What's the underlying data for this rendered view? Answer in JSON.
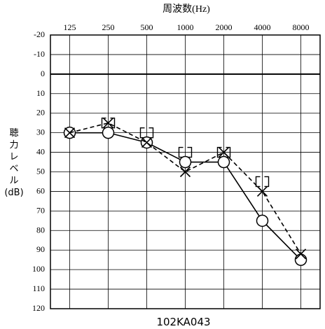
{
  "chart_data": {
    "type": "line",
    "title": "周波数(Hz)",
    "ylabel_lines": [
      "聴",
      "力",
      "レ",
      "ベ",
      "ル",
      "(dB)"
    ],
    "caption": "102KA043",
    "x": [
      125,
      250,
      500,
      1000,
      2000,
      4000,
      8000
    ],
    "x_tick_labels": [
      "125",
      "250",
      "500",
      "1000",
      "2000",
      "4000",
      "8000"
    ],
    "y_ticks": [
      -20,
      -10,
      0,
      10,
      20,
      30,
      40,
      50,
      60,
      70,
      80,
      90,
      100,
      110,
      120
    ],
    "y_tick_labels": [
      "-20",
      "-10",
      "0",
      "10",
      "20",
      "30",
      "40",
      "50",
      "60",
      "70",
      "80",
      "90",
      "100",
      "110",
      "120"
    ],
    "ylim": [
      -20,
      120
    ],
    "y_inverted": true,
    "grid": true,
    "series": [
      {
        "marker": "circle",
        "line": "solid",
        "values": [
          30,
          30,
          35,
          45,
          45,
          75,
          95
        ]
      },
      {
        "marker": "cross",
        "line": "dashed",
        "values": [
          30,
          25,
          35,
          50,
          40,
          60,
          92
        ]
      },
      {
        "marker": "bracket",
        "line": "none",
        "values": [
          null,
          25,
          30,
          40,
          40,
          55,
          null
        ]
      }
    ]
  }
}
